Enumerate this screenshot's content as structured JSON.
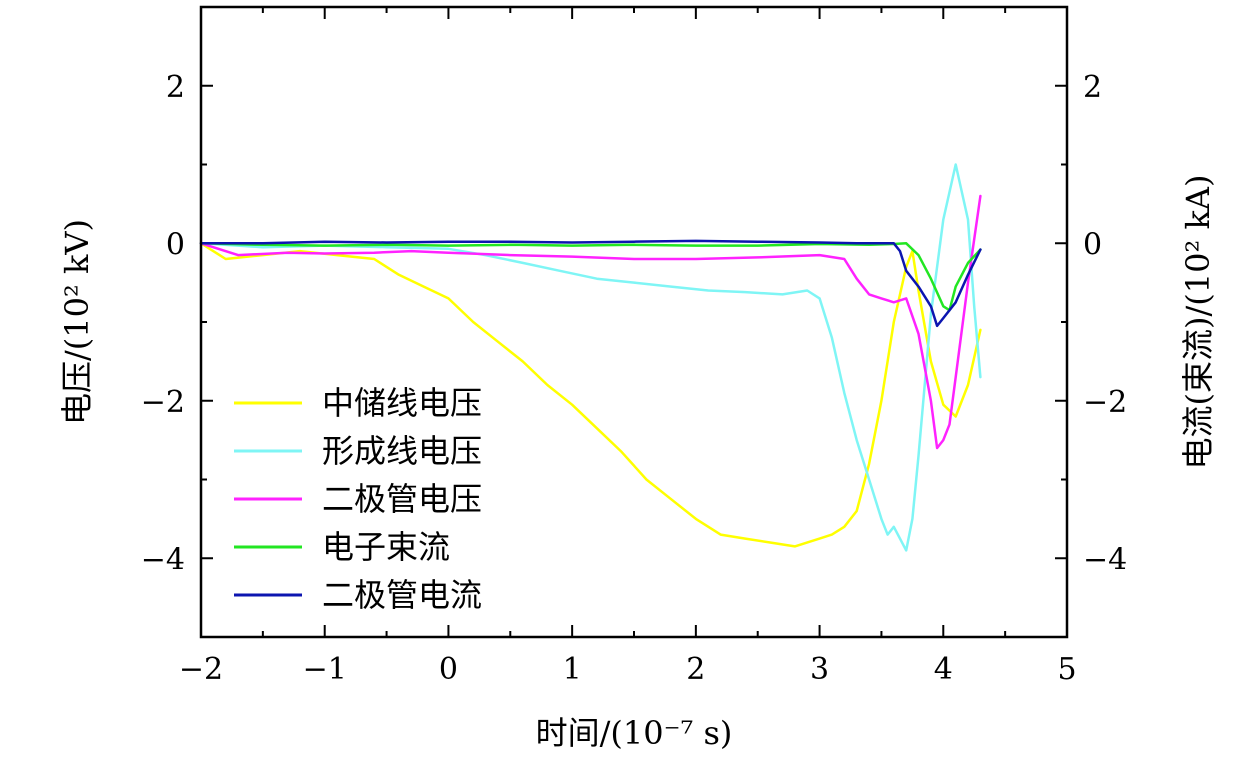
{
  "chart_data": {
    "type": "line",
    "xlabel": "时间/(10⁻⁷ s)",
    "ylabel_left": "电压/(10² kV)",
    "ylabel_right": "电流(束流)/(10² kA)",
    "xlim": [
      -2,
      5
    ],
    "ylim": [
      -5,
      3
    ],
    "x_ticks": [
      -2,
      -1,
      0,
      1,
      2,
      3,
      4,
      5
    ],
    "x_tick_labels": [
      "−2",
      "−1",
      "0",
      "1",
      "2",
      "3",
      "4",
      "5"
    ],
    "y_ticks": [
      -4,
      -2,
      0,
      2
    ],
    "y_tick_labels": [
      "−4",
      "−2",
      "0",
      "2"
    ],
    "legend_position": "lower-left",
    "series": [
      {
        "name": "中储线电压",
        "color": "#ffff00",
        "x": [
          -2.0,
          -1.8,
          -1.5,
          -1.2,
          -0.9,
          -0.6,
          -0.4,
          -0.2,
          0.0,
          0.2,
          0.4,
          0.6,
          0.8,
          1.0,
          1.2,
          1.4,
          1.6,
          1.8,
          2.0,
          2.2,
          2.4,
          2.6,
          2.8,
          3.0,
          3.1,
          3.2,
          3.3,
          3.4,
          3.5,
          3.6,
          3.7,
          3.75,
          3.8,
          3.9,
          4.0,
          4.1,
          4.2,
          4.3
        ],
        "values": [
          0.0,
          -0.2,
          -0.15,
          -0.1,
          -0.15,
          -0.2,
          -0.4,
          -0.55,
          -0.7,
          -1.0,
          -1.25,
          -1.5,
          -1.8,
          -2.05,
          -2.35,
          -2.65,
          -3.0,
          -3.25,
          -3.5,
          -3.7,
          -3.75,
          -3.8,
          -3.85,
          -3.75,
          -3.7,
          -3.6,
          -3.4,
          -2.8,
          -2.0,
          -1.0,
          -0.3,
          -0.1,
          -0.6,
          -1.5,
          -2.05,
          -2.2,
          -1.8,
          -1.1
        ]
      },
      {
        "name": "形成线电压",
        "color": "#7ff5f5",
        "x": [
          -2.0,
          -1.5,
          -1.0,
          -0.5,
          0.0,
          0.3,
          0.6,
          0.9,
          1.2,
          1.5,
          1.8,
          2.1,
          2.4,
          2.7,
          2.9,
          3.0,
          3.1,
          3.2,
          3.3,
          3.4,
          3.5,
          3.55,
          3.6,
          3.7,
          3.75,
          3.8,
          3.85,
          3.9,
          4.0,
          4.1,
          4.2,
          4.25,
          4.3
        ],
        "values": [
          0.0,
          -0.05,
          -0.03,
          -0.05,
          -0.07,
          -0.15,
          -0.25,
          -0.35,
          -0.45,
          -0.5,
          -0.55,
          -0.6,
          -0.62,
          -0.65,
          -0.6,
          -0.7,
          -1.2,
          -1.9,
          -2.5,
          -3.0,
          -3.5,
          -3.7,
          -3.6,
          -3.9,
          -3.5,
          -2.7,
          -1.8,
          -0.9,
          0.3,
          1.0,
          0.3,
          -0.8,
          -1.7
        ]
      },
      {
        "name": "二极管电压",
        "color": "#ff22ff",
        "x": [
          -2.0,
          -1.7,
          -1.3,
          -1.0,
          -0.6,
          -0.3,
          0.0,
          0.5,
          1.0,
          1.5,
          2.0,
          2.5,
          3.0,
          3.2,
          3.3,
          3.4,
          3.5,
          3.6,
          3.7,
          3.8,
          3.9,
          3.95,
          4.0,
          4.05,
          4.1,
          4.2,
          4.3
        ],
        "values": [
          0.0,
          -0.15,
          -0.12,
          -0.13,
          -0.12,
          -0.1,
          -0.12,
          -0.15,
          -0.17,
          -0.2,
          -0.2,
          -0.18,
          -0.15,
          -0.2,
          -0.45,
          -0.65,
          -0.7,
          -0.75,
          -0.7,
          -1.15,
          -2.0,
          -2.6,
          -2.5,
          -2.3,
          -1.7,
          -0.5,
          0.6
        ]
      },
      {
        "name": "电子束流",
        "color": "#22e622",
        "x": [
          -2.0,
          -1.5,
          -1.0,
          -0.5,
          0.0,
          0.5,
          1.0,
          1.5,
          2.0,
          2.5,
          3.0,
          3.4,
          3.6,
          3.7,
          3.8,
          3.9,
          4.0,
          4.05,
          4.1,
          4.2,
          4.3
        ],
        "values": [
          0.0,
          -0.02,
          -0.03,
          -0.02,
          -0.03,
          -0.02,
          -0.03,
          -0.02,
          -0.03,
          -0.03,
          -0.01,
          -0.02,
          -0.01,
          0.0,
          -0.15,
          -0.45,
          -0.8,
          -0.85,
          -0.55,
          -0.25,
          -0.08
        ]
      },
      {
        "name": "二极管电流",
        "color": "#0c15b0",
        "x": [
          -2.0,
          -1.5,
          -1.0,
          -0.5,
          0.0,
          0.5,
          1.0,
          1.5,
          2.0,
          2.5,
          3.0,
          3.3,
          3.6,
          3.65,
          3.7,
          3.8,
          3.9,
          3.95,
          4.0,
          4.1,
          4.2,
          4.3
        ],
        "values": [
          0.0,
          0.0,
          0.02,
          0.01,
          0.02,
          0.02,
          0.01,
          0.02,
          0.03,
          0.02,
          0.01,
          0.0,
          0.0,
          -0.1,
          -0.35,
          -0.55,
          -0.8,
          -1.05,
          -0.95,
          -0.75,
          -0.4,
          -0.08
        ]
      }
    ]
  }
}
